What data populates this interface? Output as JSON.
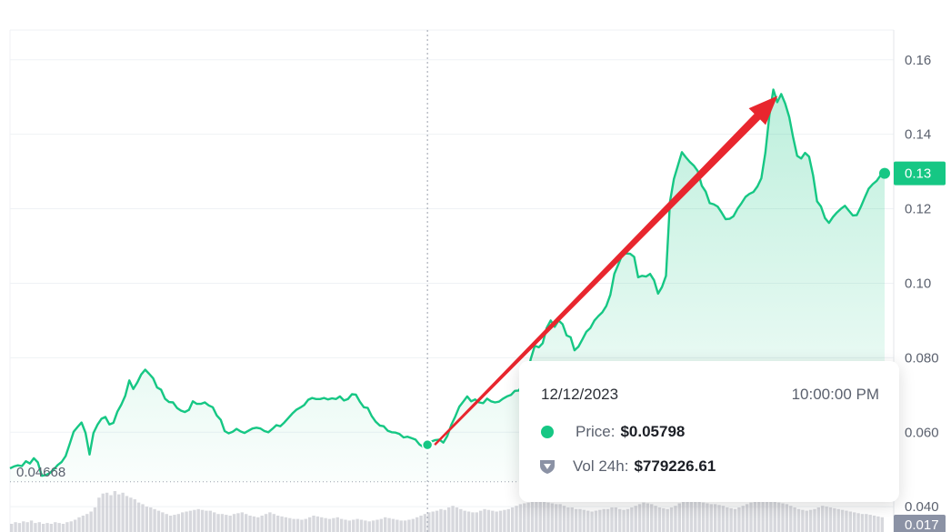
{
  "chart_data": {
    "type": "area",
    "colors": {
      "line": "#16c784",
      "annotation_arrow": "#e8262e",
      "volume": "#c9cbd1"
    },
    "y_ticks": [
      "0.16",
      "0.14",
      "0.12",
      "0.10",
      "0.080",
      "0.060",
      "0.040"
    ],
    "y_tick_values": [
      0.16,
      0.14,
      0.12,
      0.1,
      0.08,
      0.06,
      0.04
    ],
    "ylim": [
      0.0332,
      0.168
    ],
    "series": [
      {
        "values": [
          0.0503,
          0.0508,
          0.0511,
          0.0509,
          0.0522,
          0.0516,
          0.053,
          0.0519,
          0.0483,
          0.0485,
          0.049,
          0.05,
          0.0512,
          0.052,
          0.0536,
          0.0568,
          0.0601,
          0.0614,
          0.0626,
          0.0598,
          0.054,
          0.0598,
          0.062,
          0.0636,
          0.0641,
          0.0621,
          0.0625,
          0.0655,
          0.0674,
          0.0698,
          0.0739,
          0.0716,
          0.0733,
          0.0755,
          0.0768,
          0.0757,
          0.0745,
          0.072,
          0.0714,
          0.069,
          0.0681,
          0.068,
          0.0665,
          0.0658,
          0.0654,
          0.066,
          0.0683,
          0.0676,
          0.0676,
          0.068,
          0.0672,
          0.0667,
          0.0645,
          0.0633,
          0.0603,
          0.0597,
          0.0601,
          0.0609,
          0.0602,
          0.0598,
          0.0604,
          0.061,
          0.0612,
          0.061,
          0.0603,
          0.06,
          0.0609,
          0.0619,
          0.0616,
          0.0626,
          0.0638,
          0.065,
          0.066,
          0.0666,
          0.0673,
          0.0687,
          0.0692,
          0.0689,
          0.0689,
          0.0692,
          0.0688,
          0.0691,
          0.0689,
          0.0696,
          0.0685,
          0.0689,
          0.0702,
          0.0701,
          0.0682,
          0.0667,
          0.0665,
          0.0643,
          0.0628,
          0.0618,
          0.0616,
          0.0604,
          0.06,
          0.0599,
          0.0595,
          0.0586,
          0.0588,
          0.0584,
          0.058,
          0.0567,
          0.056,
          0.0566,
          0.0575,
          0.0579,
          0.058,
          0.0572,
          0.059,
          0.062,
          0.0642,
          0.0668,
          0.0682,
          0.0696,
          0.0683,
          0.0688,
          0.068,
          0.0678,
          0.069,
          0.0683,
          0.068,
          0.0682,
          0.069,
          0.0696,
          0.07,
          0.0711,
          0.0712,
          0.073,
          0.0752,
          0.0797,
          0.0832,
          0.0828,
          0.0839,
          0.088,
          0.09,
          0.0883,
          0.09,
          0.089,
          0.086,
          0.0855,
          0.082,
          0.083,
          0.085,
          0.087,
          0.088,
          0.09,
          0.0912,
          0.0922,
          0.0939,
          0.0969,
          0.1025,
          0.105,
          0.1077,
          0.108,
          0.1079,
          0.1071,
          0.1016,
          0.102,
          0.1018,
          0.1025,
          0.1008,
          0.0972,
          0.099,
          0.102,
          0.1219,
          0.128,
          0.1316,
          0.1352,
          0.1338,
          0.1326,
          0.1316,
          0.1301,
          0.1262,
          0.1246,
          0.1215,
          0.1212,
          0.1206,
          0.119,
          0.1172,
          0.1173,
          0.118,
          0.12,
          0.1215,
          0.1232,
          0.124,
          0.1245,
          0.126,
          0.1282,
          0.135,
          0.145,
          0.152,
          0.1486,
          0.1508,
          0.1482,
          0.1446,
          0.1391,
          0.1342,
          0.1335,
          0.135,
          0.134,
          0.129,
          0.122,
          0.1206,
          0.1175,
          0.1162,
          0.1178,
          0.119,
          0.12,
          0.1208,
          0.1195,
          0.1182,
          0.1183,
          0.1205,
          0.123,
          0.1254,
          0.1266,
          0.1275,
          0.129,
          0.1295
        ]
      }
    ],
    "volume_values": [
      0.1,
      0.12,
      0.11,
      0.13,
      0.12,
      0.14,
      0.11,
      0.12,
      0.1,
      0.11,
      0.1,
      0.12,
      0.11,
      0.1,
      0.12,
      0.13,
      0.15,
      0.18,
      0.2,
      0.22,
      0.25,
      0.3,
      0.42,
      0.47,
      0.48,
      0.45,
      0.5,
      0.46,
      0.48,
      0.44,
      0.42,
      0.4,
      0.36,
      0.34,
      0.31,
      0.3,
      0.28,
      0.26,
      0.24,
      0.22,
      0.2,
      0.21,
      0.22,
      0.24,
      0.25,
      0.26,
      0.27,
      0.28,
      0.27,
      0.26,
      0.26,
      0.24,
      0.22,
      0.22,
      0.21,
      0.2,
      0.22,
      0.23,
      0.24,
      0.22,
      0.2,
      0.19,
      0.18,
      0.2,
      0.22,
      0.24,
      0.22,
      0.2,
      0.19,
      0.18,
      0.17,
      0.16,
      0.16,
      0.15,
      0.16,
      0.18,
      0.2,
      0.19,
      0.18,
      0.17,
      0.16,
      0.17,
      0.18,
      0.16,
      0.15,
      0.14,
      0.15,
      0.16,
      0.15,
      0.14,
      0.13,
      0.14,
      0.15,
      0.16,
      0.18,
      0.17,
      0.16,
      0.15,
      0.14,
      0.14,
      0.15,
      0.16,
      0.18,
      0.2,
      0.22,
      0.24,
      0.25,
      0.26,
      0.28,
      0.27,
      0.3,
      0.32,
      0.3,
      0.28,
      0.26,
      0.25,
      0.24,
      0.24,
      0.26,
      0.28,
      0.27,
      0.26,
      0.25,
      0.26,
      0.27,
      0.28,
      0.3,
      0.32,
      0.34,
      0.35,
      0.36,
      0.38,
      0.4,
      0.4,
      0.38,
      0.36,
      0.35,
      0.34,
      0.34,
      0.32,
      0.3,
      0.3,
      0.28,
      0.28,
      0.27,
      0.26,
      0.25,
      0.26,
      0.27,
      0.28,
      0.28,
      0.3,
      0.3,
      0.28,
      0.27,
      0.28,
      0.3,
      0.32,
      0.34,
      0.36,
      0.35,
      0.34,
      0.32,
      0.3,
      0.29,
      0.28,
      0.3,
      0.32,
      0.35,
      0.38,
      0.4,
      0.42,
      0.4,
      0.38,
      0.36,
      0.35,
      0.34,
      0.34,
      0.33,
      0.32,
      0.3,
      0.29,
      0.28,
      0.3,
      0.32,
      0.34,
      0.36,
      0.38,
      0.4,
      0.42,
      0.42,
      0.4,
      0.38,
      0.36,
      0.35,
      0.34,
      0.32,
      0.3,
      0.28,
      0.27,
      0.26,
      0.27,
      0.28,
      0.3,
      0.32,
      0.31,
      0.3,
      0.29,
      0.28,
      0.27,
      0.26,
      0.25,
      0.24,
      0.23,
      0.22,
      0.22,
      0.21,
      0.2,
      0.19,
      0.18
    ],
    "min_label": "0.04668",
    "min_value": 0.04668,
    "current_value_label": "0.13",
    "current_value": 0.1295,
    "volume_axis_label": "0.017",
    "hover_index": 105,
    "arrow_from_index": 105,
    "arrow_to_index": 194,
    "grid": true
  },
  "tooltip": {
    "date": "12/12/2023",
    "time": "10:00:00 PM",
    "price_label": "Price:",
    "price_value": "$0.05798",
    "vol_label": "Vol 24h:",
    "vol_value": "$779226.61",
    "price_icon": "green-dot-icon",
    "vol_icon": "shield-icon"
  }
}
